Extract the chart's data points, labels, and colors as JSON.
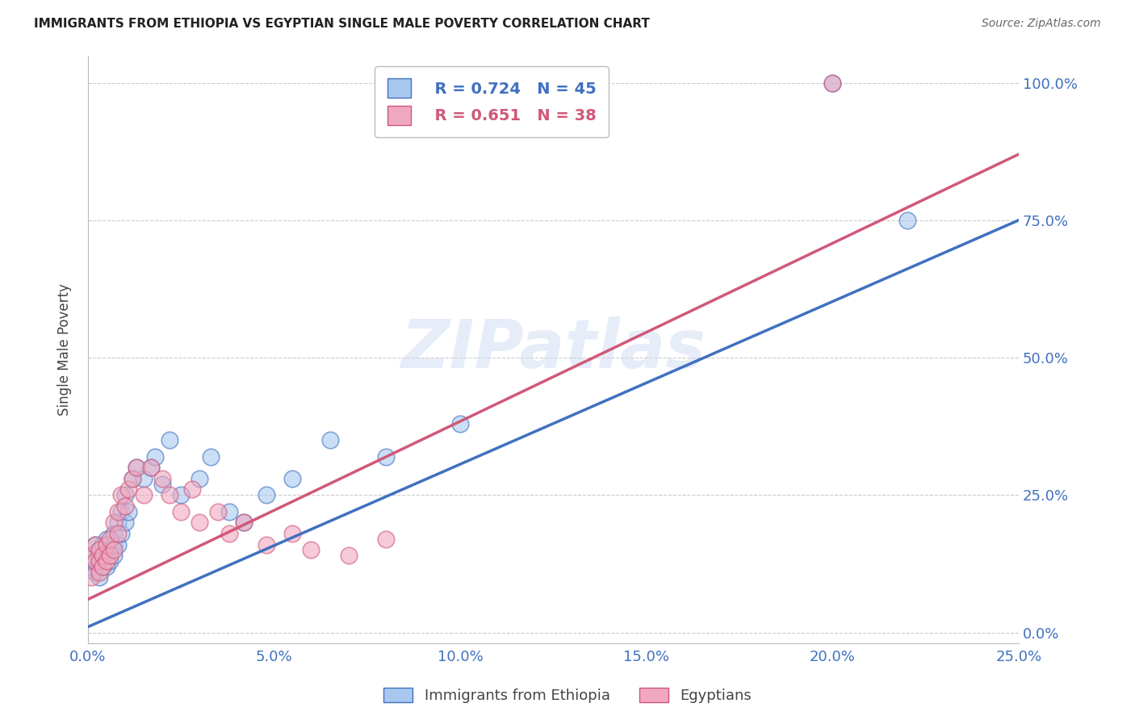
{
  "title": "IMMIGRANTS FROM ETHIOPIA VS EGYPTIAN SINGLE MALE POVERTY CORRELATION CHART",
  "source": "Source: ZipAtlas.com",
  "xlabel_label": "Immigrants from Ethiopia",
  "ylabel_label": "Single Male Poverty",
  "legend_label1": "Immigrants from Ethiopia",
  "legend_label2": "Egyptians",
  "R1": 0.724,
  "N1": 45,
  "R2": 0.651,
  "N2": 38,
  "color_blue": "#A8C8F0",
  "color_pink": "#F0A8C0",
  "line_blue": "#4070C0",
  "line_pink": "#D05878",
  "watermark": "ZIPatlas",
  "xlim": [
    0.0,
    0.25
  ],
  "ylim": [
    -0.02,
    1.05
  ],
  "xticks": [
    0.0,
    0.05,
    0.1,
    0.15,
    0.2,
    0.25
  ],
  "yticks": [
    0.0,
    0.25,
    0.5,
    0.75,
    1.0
  ],
  "blue_line_x0": 0.0,
  "blue_line_y0": 0.01,
  "blue_line_x1": 0.25,
  "blue_line_y1": 0.75,
  "pink_line_x0": 0.0,
  "pink_line_y0": 0.06,
  "pink_line_x1": 0.25,
  "pink_line_y1": 0.87,
  "ethiopia_x": [
    0.001,
    0.001,
    0.002,
    0.002,
    0.002,
    0.003,
    0.003,
    0.003,
    0.004,
    0.004,
    0.004,
    0.005,
    0.005,
    0.005,
    0.006,
    0.006,
    0.007,
    0.007,
    0.007,
    0.008,
    0.008,
    0.009,
    0.009,
    0.01,
    0.01,
    0.011,
    0.012,
    0.013,
    0.015,
    0.017,
    0.018,
    0.02,
    0.022,
    0.025,
    0.03,
    0.033,
    0.038,
    0.042,
    0.048,
    0.055,
    0.065,
    0.08,
    0.1,
    0.2,
    0.22
  ],
  "ethiopia_y": [
    0.14,
    0.12,
    0.13,
    0.16,
    0.11,
    0.13,
    0.15,
    0.1,
    0.14,
    0.12,
    0.16,
    0.14,
    0.12,
    0.17,
    0.15,
    0.13,
    0.16,
    0.14,
    0.18,
    0.2,
    0.16,
    0.18,
    0.22,
    0.2,
    0.25,
    0.22,
    0.28,
    0.3,
    0.28,
    0.3,
    0.32,
    0.27,
    0.35,
    0.25,
    0.28,
    0.32,
    0.22,
    0.2,
    0.25,
    0.28,
    0.35,
    0.32,
    0.38,
    1.0,
    0.75
  ],
  "egypt_x": [
    0.001,
    0.001,
    0.002,
    0.002,
    0.003,
    0.003,
    0.003,
    0.004,
    0.004,
    0.005,
    0.005,
    0.006,
    0.006,
    0.007,
    0.007,
    0.008,
    0.008,
    0.009,
    0.01,
    0.011,
    0.012,
    0.013,
    0.015,
    0.017,
    0.02,
    0.022,
    0.025,
    0.028,
    0.03,
    0.035,
    0.038,
    0.042,
    0.048,
    0.055,
    0.06,
    0.07,
    0.08,
    0.2
  ],
  "egypt_y": [
    0.14,
    0.1,
    0.13,
    0.16,
    0.13,
    0.11,
    0.15,
    0.14,
    0.12,
    0.13,
    0.16,
    0.14,
    0.17,
    0.15,
    0.2,
    0.18,
    0.22,
    0.25,
    0.23,
    0.26,
    0.28,
    0.3,
    0.25,
    0.3,
    0.28,
    0.25,
    0.22,
    0.26,
    0.2,
    0.22,
    0.18,
    0.2,
    0.16,
    0.18,
    0.15,
    0.14,
    0.17,
    1.0
  ]
}
